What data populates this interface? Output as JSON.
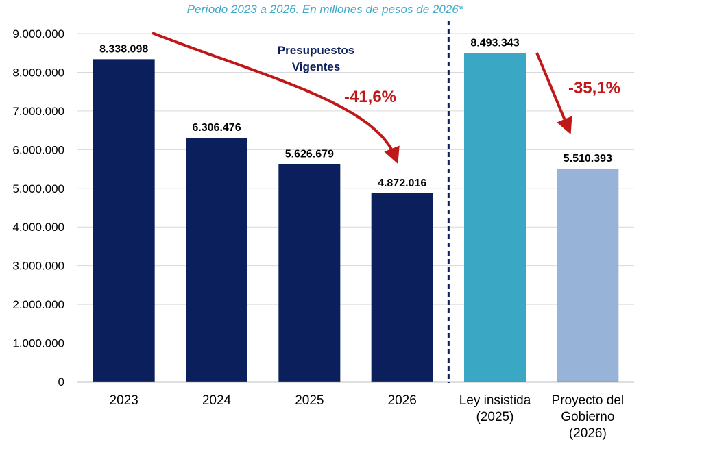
{
  "subtitle": "Período 2023 a 2026. En millones de pesos de 2026*",
  "colors": {
    "subtitle": "#3fa9c9",
    "vigente": "#0a1f5c",
    "ley": "#3aa8c4",
    "proyecto": "#97b3d8",
    "arrow": "#c01818",
    "annotation": "#0a1f5c",
    "divider": "#0a1f5c",
    "axis": "#808080"
  },
  "chart_data": {
    "type": "bar",
    "categories": [
      [
        "2023"
      ],
      [
        "2024"
      ],
      [
        "2025"
      ],
      [
        "2026"
      ],
      [
        "Ley insistida",
        "(2025)"
      ],
      [
        "Proyecto del",
        "Gobierno",
        "(2026)"
      ]
    ],
    "values": [
      8338098,
      6306476,
      5626679,
      4872016,
      8493343,
      5510393
    ],
    "data_labels": [
      "8.338.098",
      "6.306.476",
      "5.626.679",
      "4.872.016",
      "8.493.343",
      "5.510.393"
    ],
    "bar_colors": [
      "vigente",
      "vigente",
      "vigente",
      "vigente",
      "ley",
      "proyecto"
    ],
    "ylim": [
      0,
      9000000
    ],
    "yticks": [
      0,
      1000000,
      2000000,
      3000000,
      4000000,
      5000000,
      6000000,
      7000000,
      8000000,
      9000000
    ],
    "ytick_labels": [
      "0",
      "1.000.000",
      "2.000.000",
      "3.000.000",
      "4.000.000",
      "5.000.000",
      "6.000.000",
      "7.000.000",
      "8.000.000",
      "9.000.000"
    ],
    "grid": true,
    "annotations": {
      "group_label": [
        "Presupuestos",
        "Vigentes"
      ],
      "change_vigentes": "-41,6%",
      "change_proyecto": "-35,1%"
    }
  }
}
